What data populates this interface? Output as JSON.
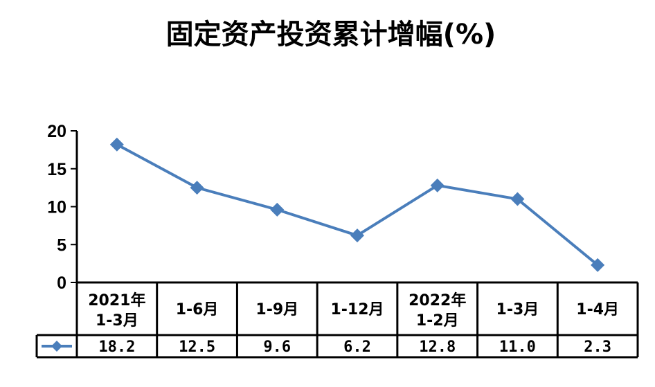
{
  "colors": {
    "series": "#4a7ebb",
    "axis": "#000000",
    "background": "#ffffff"
  },
  "chart_data": {
    "type": "line",
    "title": "固定资产投资累计增幅(%)",
    "xlabel": "",
    "ylabel": "",
    "ylim": [
      0,
      20
    ],
    "yticks": [
      "0",
      "5",
      "10",
      "15",
      "20"
    ],
    "grid": false,
    "legend": "data-table-left",
    "categories": [
      [
        "2021年",
        "1-3月"
      ],
      [
        "1-6月"
      ],
      [
        "1-9月"
      ],
      [
        "1-12月"
      ],
      [
        "2022年",
        "1-2月"
      ],
      [
        "1-3月"
      ],
      [
        "1-4月"
      ]
    ],
    "value_labels": [
      "18.2",
      "12.5",
      "9.6",
      "6.2",
      "12.8",
      "11.0",
      "2.3"
    ],
    "series": [
      {
        "values": [
          18.2,
          12.5,
          9.6,
          6.2,
          12.8,
          11.0,
          2.3
        ]
      }
    ]
  }
}
